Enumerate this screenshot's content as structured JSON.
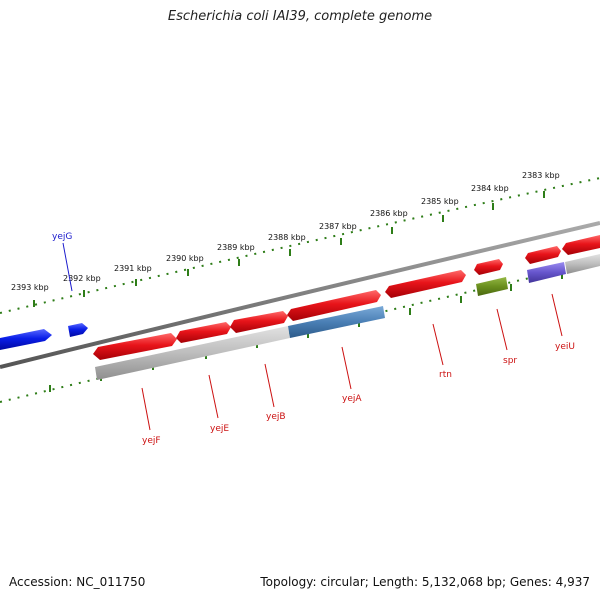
{
  "title": "Escherichia coli IAI39, complete genome",
  "footer": {
    "accession": "Accession: NC_011750",
    "summary": "Topology: circular; Length: 5,132,068 bp; Genes: 4,937"
  },
  "colors": {
    "forward_cds": "#e8141a",
    "reverse_cds": "#0a1ee8",
    "ruler": "#2e7d18",
    "backbone": "#777777",
    "gene_label_forward": "#cc1111",
    "gene_label_reverse": "#1a1acc",
    "orthology_gray": "#bdbdbd",
    "orthology_blue": "#4a7fb5",
    "orthology_green": "#6a8f1e",
    "orthology_purple": "#6655cc"
  },
  "ruler_labels": [
    "2393 kbp",
    "2392 kbp",
    "2391 kbp",
    "2390 kbp",
    "2389 kbp",
    "2388 kbp",
    "2387 kbp",
    "2386 kbp",
    "2385 kbp",
    "2384 kbp",
    "2383 kbp"
  ],
  "gene_labels": [
    "yejG",
    "yejF",
    "yejE",
    "yejB",
    "yejA",
    "rtn",
    "spr",
    "yeiU"
  ]
}
